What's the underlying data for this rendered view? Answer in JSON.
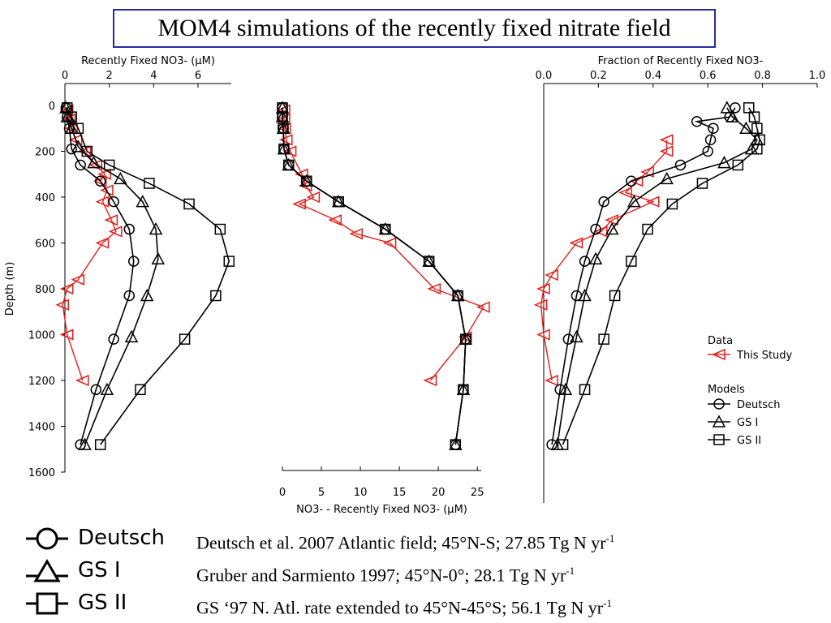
{
  "title": "MOM4 simulations of the recently fixed nitrate field",
  "colors": {
    "data": "#e0201c",
    "model": "#000000",
    "title_border": "#2a2aa0"
  },
  "y_axis": {
    "label": "Depth (m)",
    "ticks": [
      0,
      200,
      400,
      600,
      800,
      1000,
      1200,
      1400,
      1600
    ]
  },
  "chart_data": [
    {
      "type": "line",
      "panel": "left",
      "xlabel": "Recently Fixed NO3- (μM)",
      "xlim": [
        0,
        7.5
      ],
      "xticks": [
        0,
        2,
        4,
        6
      ],
      "x_axis_position": "top",
      "ylabel": "Depth (m)",
      "ylim": [
        0,
        1600
      ],
      "y_inverted": true,
      "series": [
        {
          "name": "This Study",
          "marker": "triangle-left",
          "color": "#e0201c",
          "points": [
            [
              0.1,
              20
            ],
            [
              0.2,
              60
            ],
            [
              0.3,
              100
            ],
            [
              0.5,
              150
            ],
            [
              0.9,
              200
            ],
            [
              1.4,
              260
            ],
            [
              1.8,
              300
            ],
            [
              1.6,
              330
            ],
            [
              1.9,
              370
            ],
            [
              1.7,
              420
            ],
            [
              2.1,
              500
            ],
            [
              2.3,
              550
            ],
            [
              1.7,
              600
            ],
            [
              0.6,
              760
            ],
            [
              0.1,
              800
            ],
            [
              -0.1,
              870
            ],
            [
              0.1,
              1000
            ],
            [
              0.8,
              1200
            ]
          ]
        },
        {
          "name": "Deutsch",
          "marker": "circle",
          "color": "#000000",
          "points": [
            [
              0.05,
              10
            ],
            [
              0.1,
              50
            ],
            [
              0.2,
              100
            ],
            [
              0.3,
              190
            ],
            [
              0.7,
              260
            ],
            [
              1.6,
              330
            ],
            [
              2.2,
              420
            ],
            [
              2.9,
              540
            ],
            [
              3.1,
              680
            ],
            [
              2.9,
              830
            ],
            [
              2.2,
              1020
            ],
            [
              1.4,
              1240
            ],
            [
              0.7,
              1480
            ]
          ]
        },
        {
          "name": "GS I",
          "marker": "triangle-up",
          "color": "#000000",
          "points": [
            [
              0.05,
              10
            ],
            [
              0.1,
              50
            ],
            [
              0.3,
              100
            ],
            [
              0.6,
              180
            ],
            [
              1.3,
              250
            ],
            [
              2.5,
              320
            ],
            [
              3.5,
              420
            ],
            [
              4.1,
              540
            ],
            [
              4.2,
              670
            ],
            [
              3.7,
              830
            ],
            [
              3.0,
              1010
            ],
            [
              1.9,
              1240
            ],
            [
              0.9,
              1480
            ]
          ]
        },
        {
          "name": "GS II",
          "marker": "square",
          "color": "#000000",
          "points": [
            [
              0.1,
              10
            ],
            [
              0.3,
              50
            ],
            [
              0.6,
              100
            ],
            [
              1.0,
              200
            ],
            [
              2.0,
              260
            ],
            [
              3.8,
              340
            ],
            [
              5.6,
              430
            ],
            [
              7.0,
              540
            ],
            [
              7.4,
              680
            ],
            [
              6.8,
              830
            ],
            [
              5.4,
              1020
            ],
            [
              3.4,
              1240
            ],
            [
              1.6,
              1480
            ]
          ]
        }
      ]
    },
    {
      "type": "line",
      "panel": "middle",
      "xlabel": "NO3- - Recently Fixed NO3- (μM)",
      "xlim": [
        0,
        25.5
      ],
      "xticks": [
        0,
        5,
        10,
        15,
        20,
        25
      ],
      "x_axis_position": "bottom",
      "ylim": [
        0,
        1600
      ],
      "y_inverted": true,
      "series": [
        {
          "name": "This Study",
          "marker": "triangle-left",
          "color": "#e0201c",
          "points": [
            [
              0.2,
              20
            ],
            [
              0.2,
              60
            ],
            [
              0.3,
              100
            ],
            [
              0.5,
              150
            ],
            [
              1.0,
              200
            ],
            [
              2.5,
              300
            ],
            [
              3.0,
              350
            ],
            [
              4.0,
              400
            ],
            [
              2.2,
              430
            ],
            [
              6.8,
              500
            ],
            [
              9.5,
              560
            ],
            [
              13.8,
              600
            ],
            [
              19.5,
              800
            ],
            [
              25.8,
              880
            ],
            [
              23.5,
              1010
            ],
            [
              19.0,
              1200
            ]
          ]
        },
        {
          "name": "Deutsch",
          "marker": "circle",
          "color": "#000000",
          "points": [
            [
              0,
              10
            ],
            [
              0,
              50
            ],
            [
              0.1,
              100
            ],
            [
              0.2,
              190
            ],
            [
              0.8,
              260
            ],
            [
              3.1,
              330
            ],
            [
              7.2,
              420
            ],
            [
              13.2,
              540
            ],
            [
              18.8,
              680
            ],
            [
              22.5,
              830
            ],
            [
              23.5,
              1020
            ],
            [
              23.2,
              1240
            ],
            [
              22.2,
              1480
            ]
          ]
        },
        {
          "name": "GS I",
          "marker": "triangle-up",
          "color": "#000000",
          "points": [
            [
              0,
              10
            ],
            [
              0,
              50
            ],
            [
              0.1,
              100
            ],
            [
              0.2,
              190
            ],
            [
              0.8,
              260
            ],
            [
              3.1,
              330
            ],
            [
              7.2,
              420
            ],
            [
              13.2,
              540
            ],
            [
              18.8,
              680
            ],
            [
              22.5,
              830
            ],
            [
              23.5,
              1020
            ],
            [
              23.2,
              1240
            ],
            [
              22.2,
              1480
            ]
          ]
        },
        {
          "name": "GS II",
          "marker": "square",
          "color": "#000000",
          "points": [
            [
              0,
              10
            ],
            [
              0,
              50
            ],
            [
              0.1,
              100
            ],
            [
              0.2,
              190
            ],
            [
              0.8,
              260
            ],
            [
              3.1,
              330
            ],
            [
              7.2,
              420
            ],
            [
              13.2,
              540
            ],
            [
              18.8,
              680
            ],
            [
              22.5,
              830
            ],
            [
              23.5,
              1020
            ],
            [
              23.2,
              1240
            ],
            [
              22.2,
              1480
            ]
          ]
        }
      ]
    },
    {
      "type": "line",
      "panel": "right",
      "xlabel": "Fraction of Recently Fixed NO3-",
      "xlim": [
        0,
        1.0
      ],
      "xticks": [
        0.0,
        0.2,
        0.4,
        0.6,
        0.8,
        1.0
      ],
      "x_axis_position": "top",
      "ylim": [
        0,
        1600
      ],
      "y_inverted": true,
      "series": [
        {
          "name": "This Study",
          "marker": "triangle-left",
          "color": "#e0201c",
          "points": [
            [
              0.45,
              150
            ],
            [
              0.45,
              200
            ],
            [
              0.38,
              290
            ],
            [
              0.34,
              330
            ],
            [
              0.3,
              380
            ],
            [
              0.4,
              420
            ],
            [
              0.25,
              500
            ],
            [
              0.21,
              550
            ],
            [
              0.12,
              600
            ],
            [
              0.03,
              740
            ],
            [
              0.0,
              800
            ],
            [
              -0.01,
              870
            ],
            [
              0.0,
              1000
            ],
            [
              0.03,
              1200
            ]
          ]
        },
        {
          "name": "Deutsch",
          "marker": "circle",
          "color": "#000000",
          "points": [
            [
              0.7,
              10
            ],
            [
              0.68,
              50
            ],
            [
              0.56,
              70
            ],
            [
              0.62,
              100
            ],
            [
              0.61,
              150
            ],
            [
              0.6,
              200
            ],
            [
              0.5,
              260
            ],
            [
              0.32,
              330
            ],
            [
              0.22,
              420
            ],
            [
              0.19,
              540
            ],
            [
              0.15,
              680
            ],
            [
              0.12,
              830
            ],
            [
              0.09,
              1020
            ],
            [
              0.06,
              1240
            ],
            [
              0.03,
              1480
            ]
          ]
        },
        {
          "name": "GS I",
          "marker": "triangle-up",
          "color": "#000000",
          "points": [
            [
              0.67,
              10
            ],
            [
              0.69,
              50
            ],
            [
              0.74,
              100
            ],
            [
              0.78,
              150
            ],
            [
              0.76,
              190
            ],
            [
              0.66,
              250
            ],
            [
              0.45,
              320
            ],
            [
              0.33,
              420
            ],
            [
              0.25,
              540
            ],
            [
              0.19,
              670
            ],
            [
              0.15,
              830
            ],
            [
              0.12,
              1010
            ],
            [
              0.08,
              1240
            ],
            [
              0.05,
              1480
            ]
          ]
        },
        {
          "name": "GS II",
          "marker": "square",
          "color": "#000000",
          "points": [
            [
              0.75,
              10
            ],
            [
              0.77,
              50
            ],
            [
              0.78,
              100
            ],
            [
              0.79,
              150
            ],
            [
              0.78,
              190
            ],
            [
              0.71,
              260
            ],
            [
              0.58,
              340
            ],
            [
              0.47,
              430
            ],
            [
              0.38,
              540
            ],
            [
              0.32,
              680
            ],
            [
              0.26,
              830
            ],
            [
              0.22,
              1020
            ],
            [
              0.15,
              1240
            ],
            [
              0.07,
              1480
            ]
          ]
        }
      ]
    }
  ],
  "legend": {
    "data_title": "Data",
    "this_study": "This Study",
    "models_title": "Models",
    "models": [
      "Deutsch",
      "GS I",
      "GS II"
    ]
  },
  "bottom_legend": [
    {
      "name": "Deutsch",
      "desc": "Deutsch et al. 2007 Atlantic field; 45°N-S; 27.85 Tg N yr",
      "sup": "-1"
    },
    {
      "name": "GS I",
      "desc": "Gruber and Sarmiento 1997; 45°N-0°; 28.1 Tg N yr",
      "sup": "-1"
    },
    {
      "name": "GS II",
      "desc": "GS ‘97 N. Atl. rate extended to 45°N-45°S; 56.1 Tg N yr",
      "sup": "-1"
    }
  ]
}
